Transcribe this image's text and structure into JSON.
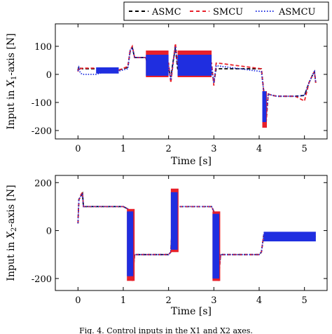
{
  "legend": {
    "entries": [
      {
        "label": "ASMC",
        "color": "#000000",
        "dash": "dashed"
      },
      {
        "label": "SMCU",
        "color": "#e8202a",
        "dash": "dashed"
      },
      {
        "label": "ASMCU",
        "color": "#1f2ee0",
        "dash": "dotted"
      }
    ],
    "placement": "top-right"
  },
  "caption_fragment": "Fig. 4. Control inputs in the X1 and X2 axes.",
  "chart_data": [
    {
      "type": "line",
      "xlabel": "Time [s]",
      "ylabel": "Input in X1-axis [N]",
      "ylabel_parts": {
        "pre": "Input in ",
        "var": "X",
        "sub": "1",
        "post": "-axis [N]"
      },
      "xlim": [
        -0.5,
        5.5
      ],
      "ylim": [
        -230,
        180
      ],
      "xticks": [
        0,
        1,
        2,
        3,
        4,
        5
      ],
      "yticks": [
        -200,
        -100,
        0,
        100
      ],
      "grid": false,
      "series": [
        {
          "name": "ASMC",
          "color": "#000000",
          "x": [
            0.0,
            0.02,
            0.05,
            0.1,
            0.4,
            0.6,
            0.9,
            1.1,
            1.15,
            1.2,
            1.25,
            1.5,
            1.55,
            2.0,
            2.05,
            2.1,
            2.15,
            2.2,
            2.95,
            3.0,
            3.05,
            3.1,
            4.05,
            4.1,
            4.15,
            4.2,
            4.3,
            4.4,
            4.8,
            5.0,
            5.1,
            5.2,
            5.22,
            5.25
          ],
          "y": [
            15,
            28,
            22,
            20,
            20,
            15,
            15,
            25,
            80,
            95,
            60,
            60,
            20,
            20,
            -10,
            45,
            95,
            20,
            20,
            -30,
            20,
            20,
            20,
            -60,
            -180,
            -70,
            -75,
            -78,
            -78,
            -75,
            -30,
            5,
            10,
            -30
          ]
        },
        {
          "name": "SMCU",
          "color": "#e8202a",
          "x": [
            0.0,
            0.02,
            0.05,
            0.1,
            0.4,
            0.6,
            0.9,
            1.1,
            1.15,
            1.2,
            1.25,
            1.5,
            1.55,
            2.0,
            2.05,
            2.1,
            2.15,
            2.2,
            2.95,
            3.0,
            3.05,
            3.1,
            4.05,
            4.1,
            4.15,
            4.2,
            4.3,
            4.4,
            4.8,
            5.0,
            5.1,
            5.2,
            5.22,
            5.25
          ],
          "y": [
            10,
            25,
            20,
            22,
            22,
            15,
            15,
            28,
            85,
            100,
            60,
            60,
            40,
            40,
            -30,
            40,
            110,
            40,
            40,
            -40,
            40,
            40,
            20,
            -60,
            -180,
            -70,
            -75,
            -78,
            -78,
            -95,
            -30,
            5,
            10,
            -30
          ]
        },
        {
          "name": "ASMCU",
          "color": "#1f2ee0",
          "x": [
            0.0,
            0.02,
            0.05,
            0.1,
            0.4,
            0.6,
            0.9,
            1.1,
            1.15,
            1.2,
            1.25,
            1.5,
            1.55,
            2.0,
            2.05,
            2.1,
            2.15,
            2.2,
            2.95,
            3.0,
            3.05,
            3.1,
            4.05,
            4.1,
            4.15,
            4.2,
            4.3,
            4.4,
            4.8,
            5.0,
            5.1,
            5.2,
            5.22,
            5.25
          ],
          "y": [
            12,
            24,
            5,
            0,
            0,
            10,
            12,
            20,
            85,
            95,
            60,
            60,
            30,
            30,
            -20,
            40,
            100,
            30,
            30,
            -30,
            30,
            30,
            10,
            -60,
            -160,
            -70,
            -75,
            -78,
            -78,
            -75,
            -30,
            5,
            10,
            -30
          ]
        }
      ],
      "bands": [
        {
          "series": "SMCU",
          "x": [
            1.5,
            2.0
          ],
          "y": [
            -10,
            85
          ]
        },
        {
          "series": "ASMCU",
          "x": [
            1.5,
            2.0
          ],
          "y": [
            -5,
            70
          ]
        },
        {
          "series": "SMCU",
          "x": [
            2.2,
            2.95
          ],
          "y": [
            -10,
            85
          ]
        },
        {
          "series": "ASMCU",
          "x": [
            2.2,
            2.95
          ],
          "y": [
            -5,
            70
          ]
        },
        {
          "series": "ASMCU",
          "x": [
            0.4,
            0.9
          ],
          "y": [
            3,
            25
          ]
        },
        {
          "series": "SMCU",
          "x": [
            4.07,
            4.17
          ],
          "y": [
            -190,
            -60
          ]
        },
        {
          "series": "ASMCU",
          "x": [
            4.07,
            4.16
          ],
          "y": [
            -170,
            -60
          ]
        }
      ]
    },
    {
      "type": "line",
      "xlabel": "Time [s]",
      "ylabel": "Input in X2-axis [N]",
      "ylabel_parts": {
        "pre": "Input in ",
        "var": "X",
        "sub": "2",
        "post": "-axis [N]"
      },
      "xlim": [
        -0.5,
        5.5
      ],
      "ylim": [
        -250,
        230
      ],
      "xticks": [
        0,
        1,
        2,
        3,
        4,
        5
      ],
      "yticks": [
        -200,
        0,
        200
      ],
      "grid": false,
      "series": [
        {
          "name": "ASMC",
          "color": "#000000",
          "x": [
            0.0,
            0.02,
            0.05,
            0.1,
            0.12,
            1.0,
            1.1,
            1.15,
            1.2,
            1.25,
            2.0,
            2.05,
            2.1,
            2.15,
            2.2,
            2.95,
            3.0,
            3.05,
            3.1,
            3.15,
            4.0,
            4.05,
            4.1,
            4.15,
            5.25
          ],
          "y": [
            30,
            130,
            140,
            155,
            100,
            100,
            90,
            -130,
            -200,
            -100,
            -100,
            -90,
            100,
            160,
            100,
            100,
            80,
            -120,
            -200,
            -100,
            -100,
            -90,
            -20,
            -25,
            -25
          ]
        },
        {
          "name": "SMCU",
          "color": "#e8202a",
          "x": [
            0.0,
            0.02,
            0.05,
            0.1,
            0.12,
            1.0,
            1.1,
            1.15,
            1.2,
            1.25,
            2.0,
            2.05,
            2.1,
            2.15,
            2.2,
            2.95,
            3.0,
            3.05,
            3.1,
            3.15,
            4.0,
            4.05,
            4.1,
            4.15,
            5.25
          ],
          "y": [
            30,
            125,
            145,
            160,
            100,
            100,
            90,
            -130,
            -210,
            -100,
            -100,
            -90,
            100,
            170,
            100,
            100,
            80,
            -120,
            -210,
            -100,
            -100,
            -90,
            -20,
            -25,
            -25
          ]
        },
        {
          "name": "ASMCU",
          "color": "#1f2ee0",
          "x": [
            0.0,
            0.02,
            0.05,
            0.1,
            0.12,
            1.0,
            1.1,
            1.15,
            1.2,
            1.25,
            2.0,
            2.05,
            2.1,
            2.15,
            2.2,
            2.95,
            3.0,
            3.05,
            3.1,
            3.15,
            4.0,
            4.05,
            4.1,
            4.15,
            5.25
          ],
          "y": [
            30,
            130,
            140,
            155,
            100,
            100,
            90,
            -130,
            -200,
            -100,
            -100,
            -90,
            100,
            160,
            100,
            100,
            80,
            -120,
            -200,
            -100,
            -100,
            -90,
            -20,
            -25,
            -25
          ]
        }
      ],
      "bands": [
        {
          "series": "SMCU",
          "x": [
            1.08,
            1.25
          ],
          "y": [
            -210,
            90
          ]
        },
        {
          "series": "ASMCU",
          "x": [
            1.08,
            1.22
          ],
          "y": [
            -190,
            80
          ]
        },
        {
          "series": "SMCU",
          "x": [
            2.05,
            2.22
          ],
          "y": [
            -90,
            175
          ]
        },
        {
          "series": "ASMCU",
          "x": [
            2.05,
            2.2
          ],
          "y": [
            -80,
            160
          ]
        },
        {
          "series": "SMCU",
          "x": [
            2.97,
            3.14
          ],
          "y": [
            -210,
            80
          ]
        },
        {
          "series": "ASMCU",
          "x": [
            2.97,
            3.12
          ],
          "y": [
            -200,
            70
          ]
        },
        {
          "series": "ASMCU",
          "x": [
            4.1,
            5.25
          ],
          "y": [
            -45,
            -5
          ]
        }
      ]
    }
  ]
}
